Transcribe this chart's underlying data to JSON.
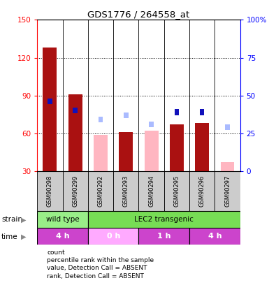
{
  "title": "GDS1776 / 264558_at",
  "samples": [
    "GSM90298",
    "GSM90299",
    "GSM90292",
    "GSM90293",
    "GSM90294",
    "GSM90295",
    "GSM90296",
    "GSM90297"
  ],
  "count_present": [
    128,
    91,
    null,
    61,
    null,
    67,
    68,
    null
  ],
  "count_absent": [
    null,
    null,
    59,
    null,
    62,
    null,
    null,
    37
  ],
  "rank_present": [
    46,
    40,
    null,
    37,
    null,
    39,
    39,
    null
  ],
  "rank_absent": [
    null,
    null,
    34,
    37,
    31,
    null,
    null,
    29
  ],
  "ylim_left": [
    30,
    150
  ],
  "ylim_right": [
    0,
    100
  ],
  "yticks_left": [
    30,
    60,
    90,
    120,
    150
  ],
  "yticks_right": [
    0,
    25,
    50,
    75,
    100
  ],
  "yticklabels_right": [
    "0",
    "25",
    "50",
    "75",
    "100%"
  ],
  "strain_groups": [
    {
      "label": "wild type",
      "start": 0,
      "end": 2,
      "color": "#99EE88"
    },
    {
      "label": "LEC2 transgenic",
      "start": 2,
      "end": 8,
      "color": "#77DD55"
    }
  ],
  "time_groups": [
    {
      "label": "4 h",
      "start": 0,
      "end": 2,
      "color": "#CC44CC"
    },
    {
      "label": "0 h",
      "start": 2,
      "end": 4,
      "color": "#FFAAFF"
    },
    {
      "label": "1 h",
      "start": 4,
      "end": 6,
      "color": "#CC44CC"
    },
    {
      "label": "4 h",
      "start": 6,
      "end": 8,
      "color": "#CC44CC"
    }
  ],
  "color_count_present": "#AA1111",
  "color_count_absent": "#FFB6C1",
  "color_rank_present": "#1111BB",
  "color_rank_absent": "#AABBFF",
  "bg_color": "#CCCCCC",
  "legend_items": [
    {
      "label": "count",
      "color": "#AA1111"
    },
    {
      "label": "percentile rank within the sample",
      "color": "#1111BB"
    },
    {
      "label": "value, Detection Call = ABSENT",
      "color": "#FFB6C1"
    },
    {
      "label": "rank, Detection Call = ABSENT",
      "color": "#AABBFF"
    }
  ]
}
